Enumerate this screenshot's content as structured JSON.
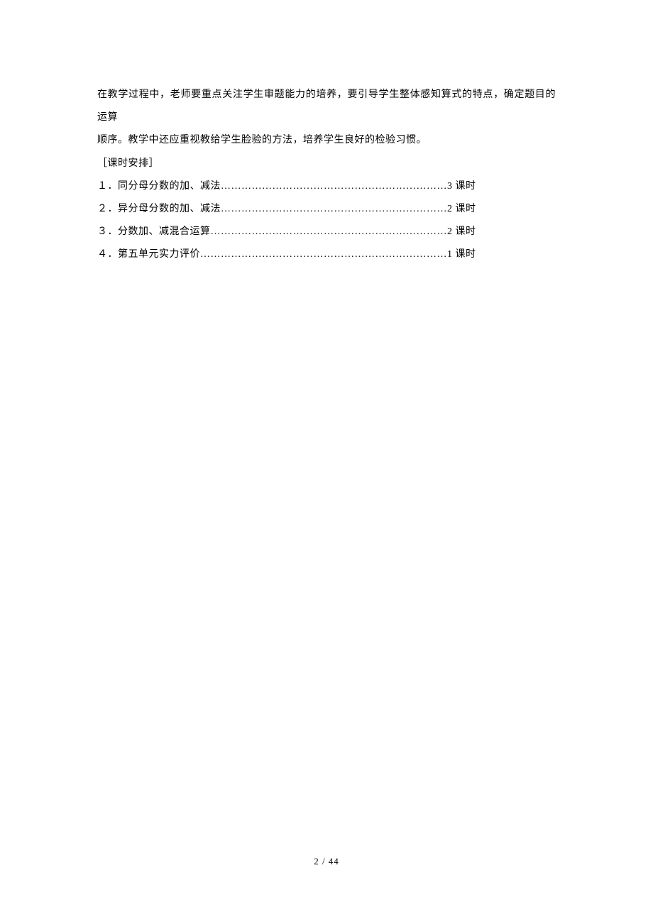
{
  "paragraph": {
    "line1": "在教学过程中，老师要重点关注学生审题能力的培养，要引导学生整体感知算式的特点，确定题目的运算",
    "line2": "顺序。教学中还应重视教给学生脸验的方法，培养学生良好的检验习惯。"
  },
  "section_label": "［课时安排］",
  "toc": [
    {
      "number": "１．",
      "title": "同分母分数的加、减法",
      "dots": "…………………………………………………………",
      "hours": "3 课时"
    },
    {
      "number": "２．",
      "title": "异分母分数的加、减法",
      "dots": "…………………………………………………………",
      "hours": "2 课时"
    },
    {
      "number": "３．",
      "title": "分数加、减混合运算",
      "dots": "……………………………………………………………",
      "hours": "2 课时"
    },
    {
      "number": "４．",
      "title": "第五单元实力评价",
      "dots": "………………………………………………………………",
      "hours": "1 课时"
    }
  ],
  "page_number": "2 / 44"
}
